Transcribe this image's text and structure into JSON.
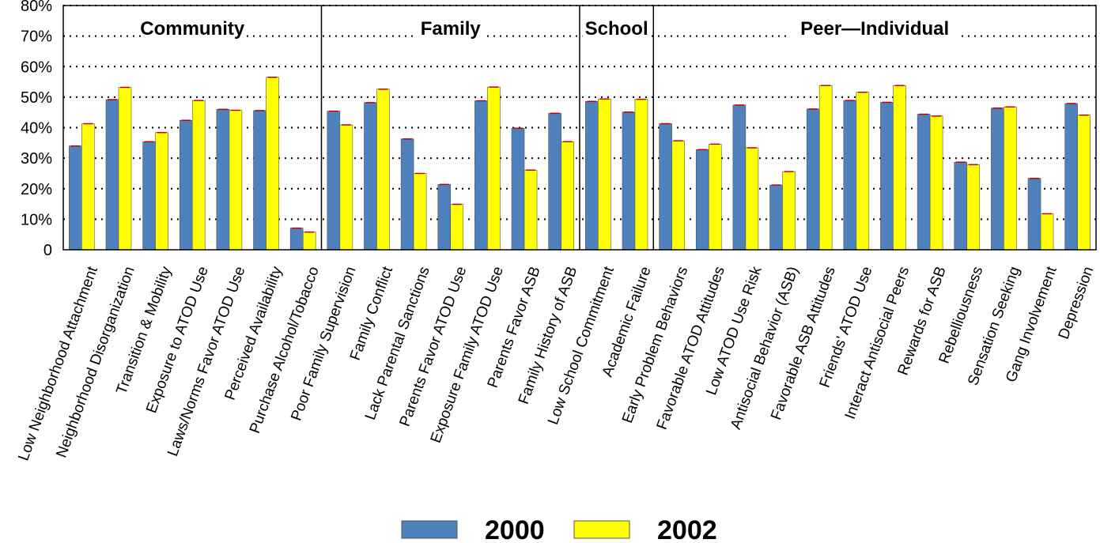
{
  "chart_data": {
    "type": "bar",
    "title": "",
    "xlabel": "",
    "ylabel": "",
    "ylim": [
      0,
      0.8
    ],
    "yticks": [
      "0",
      "10%",
      "20%",
      "30%",
      "40%",
      "50%",
      "60%",
      "70%",
      "80%"
    ],
    "grid": "horizontal dotted",
    "legend_position": "bottom",
    "colors": {
      "2000": "#4f81bd",
      "2002": "#ffff00",
      "frame": "#000000"
    },
    "groups": [
      {
        "label": "Community",
        "start": 0,
        "end": 6
      },
      {
        "label": "Family",
        "start": 7,
        "end": 13
      },
      {
        "label": "School",
        "start": 14,
        "end": 15
      },
      {
        "label": "Peer—Individual",
        "start": 16,
        "end": 27
      }
    ],
    "categories": [
      "Low Neighborhood Attachment",
      "Neighborhood Disorganization",
      "Transition & Mobility",
      "Exposure to ATOD Use",
      "Laws/Norms Favor ATOD Use",
      "Perceived Availability",
      "Purchase Alcohol/Tobacco",
      "Poor Family Supervision",
      "Family Conflict",
      "Lack Parental Sanctions",
      "Parents Favor ATOD Use",
      "Exposure Family ATOD Use",
      "Parents Favor ASB",
      "Family History of ASB",
      "Low School Commitment",
      "Academic Failure",
      "Early Problem Behaviors",
      "Favorable ATOD Attitudes",
      "Low ATOD Use Risk",
      "Antisocial Behavior (ASB)",
      "Favorable ASB Attitudes",
      "Friends' ATOD Use",
      "Interact Antisocial Peers",
      "Rewards for ASB",
      "Rebelliousness",
      "Sensation Seeking",
      "Gang Involvement",
      "Depression"
    ],
    "series": [
      {
        "name": "2000",
        "values": [
          0.34,
          0.492,
          0.354,
          0.424,
          0.46,
          0.456,
          0.071,
          0.454,
          0.482,
          0.363,
          0.214,
          0.488,
          0.398,
          0.447,
          0.486,
          0.451,
          0.413,
          0.328,
          0.474,
          0.212,
          0.461,
          0.489,
          0.483,
          0.444,
          0.287,
          0.464,
          0.234,
          0.479
        ]
      },
      {
        "name": "2002",
        "values": [
          0.413,
          0.532,
          0.384,
          0.489,
          0.457,
          0.565,
          0.058,
          0.409,
          0.526,
          0.25,
          0.149,
          0.533,
          0.261,
          0.354,
          0.494,
          0.493,
          0.357,
          0.346,
          0.334,
          0.256,
          0.538,
          0.516,
          0.538,
          0.438,
          0.279,
          0.468,
          0.118,
          0.441
        ]
      }
    ]
  }
}
